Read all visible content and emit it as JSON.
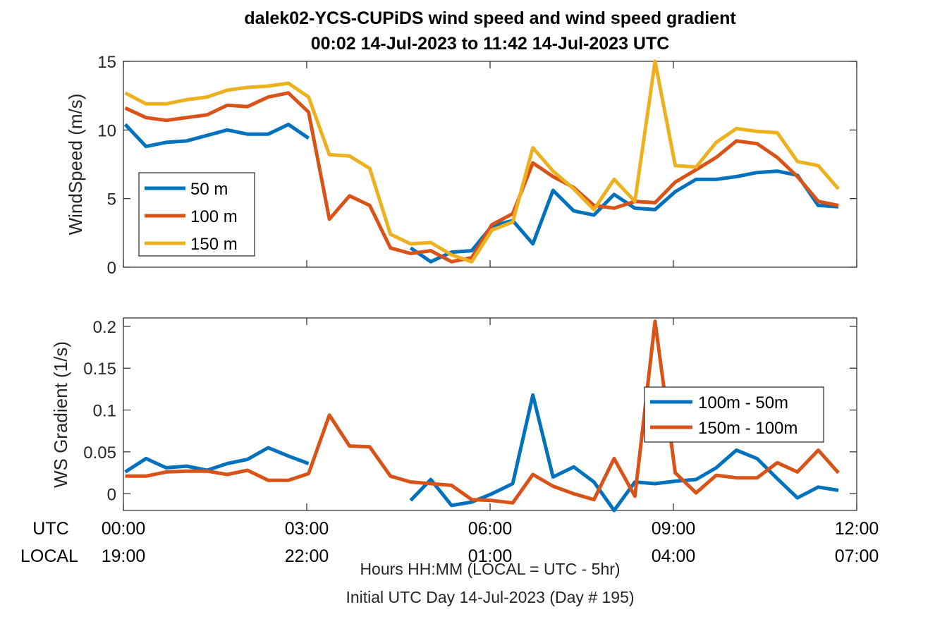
{
  "title_line1": "dalek02-YCS-CUPiDS  wind speed and wind speed gradient",
  "title_line2": "00:02 14-Jul-2023 to 11:42 14-Jul-2023  UTC",
  "row_labels": {
    "utc": "UTC",
    "local": "LOCAL"
  },
  "x_ticks_utc": [
    "00:00",
    "03:00",
    "06:00",
    "09:00",
    "12:00"
  ],
  "x_ticks_local": [
    "19:00",
    "22:00",
    "01:00",
    "04:00",
    "07:00"
  ],
  "xlabel_line1": "Hours HH:MM  (LOCAL = UTC - 5hr)",
  "xlabel_line2": "Initial UTC Day 14-Jul-2023 (Day # 195)",
  "colors": {
    "blue": "#0072BD",
    "orange": "#D95319",
    "yellow": "#EDB120"
  },
  "chart_data": [
    {
      "type": "line",
      "ylabel": "WindSpeed (m/s)",
      "xlim": [
        0,
        12
      ],
      "ylim": [
        0,
        15
      ],
      "y_ticks": [
        0,
        5,
        10,
        15
      ],
      "legend_placement": "left",
      "x_hours": [
        0.03,
        0.37,
        0.7,
        1.03,
        1.37,
        1.7,
        2.03,
        2.37,
        2.7,
        3.03,
        3.37,
        3.7,
        4.03,
        4.37,
        4.7,
        5.03,
        5.37,
        5.7,
        6.03,
        6.37,
        6.7,
        7.03,
        7.37,
        7.7,
        8.03,
        8.37,
        8.7,
        9.03,
        9.37,
        9.7,
        10.03,
        10.37,
        10.7,
        11.03,
        11.37,
        11.7
      ],
      "series": [
        {
          "name": "50 m",
          "color": "#0072BD",
          "values": [
            10.4,
            8.8,
            9.1,
            9.2,
            9.6,
            10.0,
            9.7,
            9.7,
            10.4,
            9.4,
            null,
            null,
            null,
            null,
            1.4,
            0.4,
            1.1,
            1.2,
            3.0,
            3.4,
            1.7,
            5.6,
            4.1,
            3.8,
            5.3,
            4.3,
            4.2,
            5.5,
            6.4,
            6.4,
            6.6,
            6.9,
            7.0,
            6.7,
            4.5,
            4.4
          ]
        },
        {
          "name": "100 m",
          "color": "#D95319",
          "values": [
            11.6,
            10.9,
            10.7,
            10.9,
            11.1,
            11.8,
            11.7,
            12.4,
            12.7,
            11.3,
            3.5,
            5.2,
            4.5,
            1.4,
            1.0,
            1.2,
            0.4,
            0.7,
            3.1,
            3.9,
            7.6,
            6.6,
            5.8,
            4.5,
            4.3,
            4.8,
            4.7,
            6.2,
            7.1,
            8.0,
            9.2,
            9.0,
            8.0,
            6.6,
            4.8,
            4.5
          ]
        },
        {
          "name": "150 m",
          "color": "#EDB120",
          "values": [
            12.7,
            11.9,
            11.9,
            12.2,
            12.4,
            12.9,
            13.1,
            13.2,
            13.4,
            12.4,
            8.2,
            8.1,
            7.2,
            2.4,
            1.7,
            1.8,
            0.9,
            0.4,
            2.7,
            3.3,
            8.7,
            7.0,
            5.7,
            4.2,
            6.4,
            4.8,
            15.0,
            7.4,
            7.3,
            9.1,
            10.1,
            9.9,
            9.8,
            7.7,
            7.4,
            5.7
          ]
        }
      ]
    },
    {
      "type": "line",
      "ylabel": "WS Gradient (1/s)",
      "xlim": [
        0,
        12
      ],
      "ylim": [
        -0.02,
        0.21
      ],
      "y_ticks": [
        0,
        0.05,
        0.1,
        0.15,
        0.2
      ],
      "y_tick_labels": [
        "0",
        "0.05",
        "0.1",
        "0.15",
        "0.2"
      ],
      "legend_placement": "right",
      "x_hours": [
        0.03,
        0.37,
        0.7,
        1.03,
        1.37,
        1.7,
        2.03,
        2.37,
        2.7,
        3.03,
        3.37,
        3.7,
        4.03,
        4.37,
        4.7,
        5.03,
        5.37,
        5.7,
        6.03,
        6.37,
        6.7,
        7.03,
        7.37,
        7.7,
        8.03,
        8.37,
        8.7,
        9.03,
        9.37,
        9.7,
        10.03,
        10.37,
        10.7,
        11.03,
        11.37,
        11.7
      ],
      "series": [
        {
          "name": "100m - 50m",
          "color": "#0072BD",
          "values": [
            0.026,
            0.042,
            0.031,
            0.033,
            0.028,
            0.036,
            0.041,
            0.055,
            0.045,
            0.036,
            null,
            null,
            null,
            null,
            -0.008,
            0.017,
            -0.014,
            -0.01,
            0.0,
            0.012,
            0.118,
            0.02,
            0.032,
            0.014,
            -0.02,
            0.014,
            0.012,
            0.015,
            0.017,
            0.031,
            0.052,
            0.042,
            0.018,
            -0.005,
            0.008,
            0.004
          ]
        },
        {
          "name": "150m - 100m",
          "color": "#D95319",
          "values": [
            0.021,
            0.021,
            0.026,
            0.027,
            0.027,
            0.023,
            0.028,
            0.016,
            0.016,
            0.024,
            0.094,
            0.057,
            0.056,
            0.021,
            0.014,
            0.012,
            0.01,
            -0.007,
            -0.008,
            -0.011,
            0.023,
            0.009,
            0.0,
            -0.007,
            0.042,
            -0.003,
            0.206,
            0.025,
            0.001,
            0.022,
            0.019,
            0.019,
            0.037,
            0.026,
            0.052,
            0.025
          ]
        }
      ]
    }
  ]
}
